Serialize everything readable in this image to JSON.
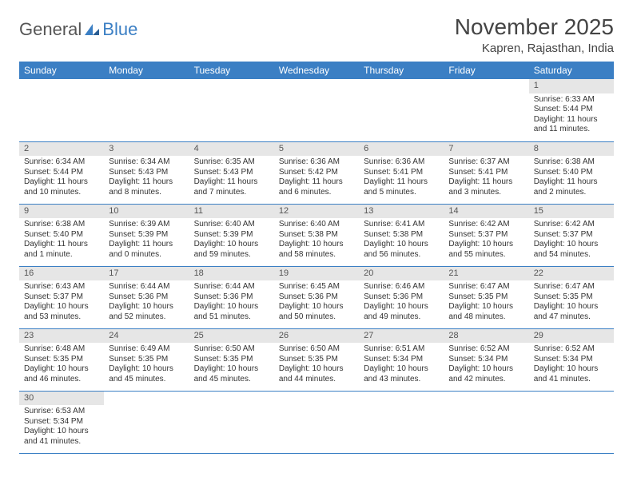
{
  "brand": {
    "part1": "General",
    "part2": "Blue"
  },
  "title": "November 2025",
  "location": "Kapren, Rajasthan, India",
  "colors": {
    "header_bg": "#3b7fc4",
    "header_text": "#ffffff",
    "daynum_bg": "#e6e6e6",
    "border": "#3b7fc4",
    "text": "#333333"
  },
  "weekdays": [
    "Sunday",
    "Monday",
    "Tuesday",
    "Wednesday",
    "Thursday",
    "Friday",
    "Saturday"
  ],
  "weeks": [
    [
      null,
      null,
      null,
      null,
      null,
      null,
      {
        "n": "1",
        "sr": "6:33 AM",
        "ss": "5:44 PM",
        "dl": "11 hours and 11 minutes."
      }
    ],
    [
      {
        "n": "2",
        "sr": "6:34 AM",
        "ss": "5:44 PM",
        "dl": "11 hours and 10 minutes."
      },
      {
        "n": "3",
        "sr": "6:34 AM",
        "ss": "5:43 PM",
        "dl": "11 hours and 8 minutes."
      },
      {
        "n": "4",
        "sr": "6:35 AM",
        "ss": "5:43 PM",
        "dl": "11 hours and 7 minutes."
      },
      {
        "n": "5",
        "sr": "6:36 AM",
        "ss": "5:42 PM",
        "dl": "11 hours and 6 minutes."
      },
      {
        "n": "6",
        "sr": "6:36 AM",
        "ss": "5:41 PM",
        "dl": "11 hours and 5 minutes."
      },
      {
        "n": "7",
        "sr": "6:37 AM",
        "ss": "5:41 PM",
        "dl": "11 hours and 3 minutes."
      },
      {
        "n": "8",
        "sr": "6:38 AM",
        "ss": "5:40 PM",
        "dl": "11 hours and 2 minutes."
      }
    ],
    [
      {
        "n": "9",
        "sr": "6:38 AM",
        "ss": "5:40 PM",
        "dl": "11 hours and 1 minute."
      },
      {
        "n": "10",
        "sr": "6:39 AM",
        "ss": "5:39 PM",
        "dl": "11 hours and 0 minutes."
      },
      {
        "n": "11",
        "sr": "6:40 AM",
        "ss": "5:39 PM",
        "dl": "10 hours and 59 minutes."
      },
      {
        "n": "12",
        "sr": "6:40 AM",
        "ss": "5:38 PM",
        "dl": "10 hours and 58 minutes."
      },
      {
        "n": "13",
        "sr": "6:41 AM",
        "ss": "5:38 PM",
        "dl": "10 hours and 56 minutes."
      },
      {
        "n": "14",
        "sr": "6:42 AM",
        "ss": "5:37 PM",
        "dl": "10 hours and 55 minutes."
      },
      {
        "n": "15",
        "sr": "6:42 AM",
        "ss": "5:37 PM",
        "dl": "10 hours and 54 minutes."
      }
    ],
    [
      {
        "n": "16",
        "sr": "6:43 AM",
        "ss": "5:37 PM",
        "dl": "10 hours and 53 minutes."
      },
      {
        "n": "17",
        "sr": "6:44 AM",
        "ss": "5:36 PM",
        "dl": "10 hours and 52 minutes."
      },
      {
        "n": "18",
        "sr": "6:44 AM",
        "ss": "5:36 PM",
        "dl": "10 hours and 51 minutes."
      },
      {
        "n": "19",
        "sr": "6:45 AM",
        "ss": "5:36 PM",
        "dl": "10 hours and 50 minutes."
      },
      {
        "n": "20",
        "sr": "6:46 AM",
        "ss": "5:36 PM",
        "dl": "10 hours and 49 minutes."
      },
      {
        "n": "21",
        "sr": "6:47 AM",
        "ss": "5:35 PM",
        "dl": "10 hours and 48 minutes."
      },
      {
        "n": "22",
        "sr": "6:47 AM",
        "ss": "5:35 PM",
        "dl": "10 hours and 47 minutes."
      }
    ],
    [
      {
        "n": "23",
        "sr": "6:48 AM",
        "ss": "5:35 PM",
        "dl": "10 hours and 46 minutes."
      },
      {
        "n": "24",
        "sr": "6:49 AM",
        "ss": "5:35 PM",
        "dl": "10 hours and 45 minutes."
      },
      {
        "n": "25",
        "sr": "6:50 AM",
        "ss": "5:35 PM",
        "dl": "10 hours and 45 minutes."
      },
      {
        "n": "26",
        "sr": "6:50 AM",
        "ss": "5:35 PM",
        "dl": "10 hours and 44 minutes."
      },
      {
        "n": "27",
        "sr": "6:51 AM",
        "ss": "5:34 PM",
        "dl": "10 hours and 43 minutes."
      },
      {
        "n": "28",
        "sr": "6:52 AM",
        "ss": "5:34 PM",
        "dl": "10 hours and 42 minutes."
      },
      {
        "n": "29",
        "sr": "6:52 AM",
        "ss": "5:34 PM",
        "dl": "10 hours and 41 minutes."
      }
    ],
    [
      {
        "n": "30",
        "sr": "6:53 AM",
        "ss": "5:34 PM",
        "dl": "10 hours and 41 minutes."
      },
      null,
      null,
      null,
      null,
      null,
      null
    ]
  ],
  "labels": {
    "sunrise": "Sunrise: ",
    "sunset": "Sunset: ",
    "daylight": "Daylight: "
  }
}
